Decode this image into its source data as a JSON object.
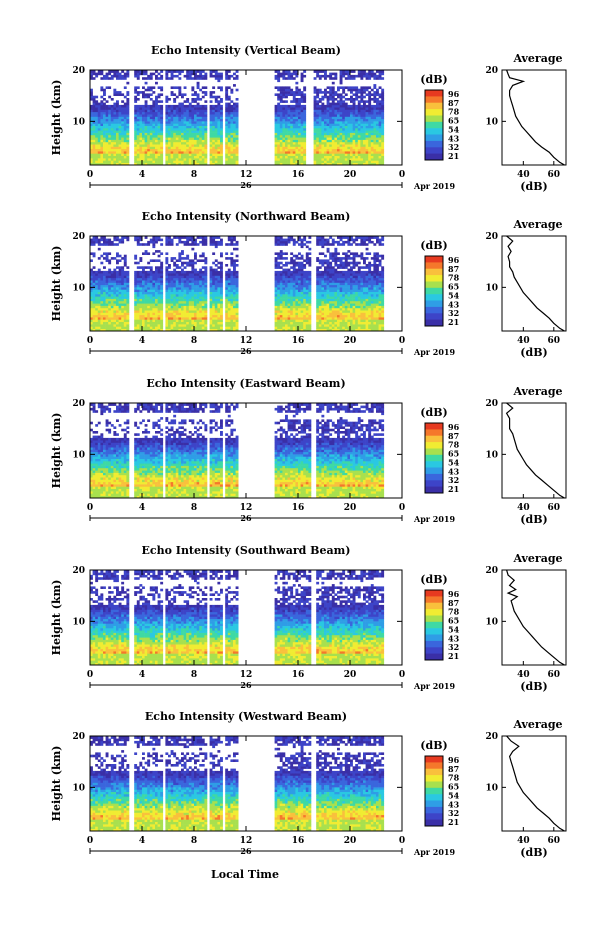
{
  "figure": {
    "xlabel": "Local Time",
    "date_day": "26",
    "date_month_year": "Apr 2019"
  },
  "colorbar": {
    "unit": "(dB)",
    "ticks": [
      "96",
      "87",
      "78",
      "65",
      "54",
      "43",
      "32",
      "21"
    ],
    "colors": [
      "#e73a20",
      "#f5772b",
      "#f9c03c",
      "#f1ec32",
      "#a8e04e",
      "#3ed9a4",
      "#2ac8e2",
      "#2f9de6",
      "#3a66dd",
      "#3d44c8",
      "#3a2fa7"
    ]
  },
  "chart_data": [
    {
      "type": "heatmap",
      "title": "Echo Intensity (Vertical Beam)",
      "ylabel": "Height (km)",
      "xlim": [
        0,
        24
      ],
      "ylim": [
        1.5,
        20
      ],
      "xticks": [
        "0",
        "4",
        "8",
        "12",
        "16",
        "20",
        "0"
      ],
      "yticks": [
        "10",
        "20"
      ],
      "data_gaps_hours": [
        [
          3.0,
          3.4
        ],
        [
          5.6,
          5.9
        ],
        [
          9.0,
          9.2
        ],
        [
          10.2,
          10.4
        ],
        [
          11.4,
          14.2
        ],
        [
          16.6,
          17.2
        ]
      ],
      "profile": {
        "title": "Average",
        "xlabel": "(dB)",
        "xticks": [
          "40",
          "60"
        ],
        "xlim": [
          26,
          68
        ],
        "ylim": [
          1.5,
          20
        ],
        "height_km": [
          1.5,
          2,
          3,
          4,
          5,
          6,
          7,
          8,
          9,
          10,
          11,
          12,
          13,
          14,
          15,
          16,
          17,
          17.8,
          18.5,
          19.2,
          20
        ],
        "intensity_db": [
          67,
          64,
          60,
          57,
          52,
          48,
          45,
          42,
          39,
          37,
          35,
          34,
          33,
          32,
          31,
          31,
          33,
          40,
          31,
          30,
          29
        ]
      }
    },
    {
      "type": "heatmap",
      "title": "Echo Intensity (Northward Beam)",
      "ylabel": "Height (km)",
      "xlim": [
        0,
        24
      ],
      "ylim": [
        1.5,
        20
      ],
      "xticks": [
        "0",
        "4",
        "8",
        "12",
        "16",
        "20",
        "0"
      ],
      "yticks": [
        "10",
        "20"
      ],
      "data_gaps_hours": [
        [
          3.0,
          3.4
        ],
        [
          5.6,
          5.9
        ],
        [
          9.0,
          9.2
        ],
        [
          10.2,
          10.4
        ],
        [
          11.4,
          14.2
        ],
        [
          17.0,
          17.4
        ]
      ],
      "profile": {
        "title": "Average",
        "xlabel": "(dB)",
        "xticks": [
          "40",
          "60"
        ],
        "xlim": [
          26,
          68
        ],
        "ylim": [
          1.5,
          20
        ],
        "height_km": [
          1.5,
          2,
          3,
          4,
          5,
          6,
          7,
          8,
          9,
          10,
          11,
          12,
          13,
          14,
          15,
          16,
          17,
          18,
          19,
          20
        ],
        "intensity_db": [
          67,
          64,
          60,
          57,
          53,
          49,
          46,
          43,
          40,
          38,
          36,
          34,
          33,
          31,
          31,
          30,
          32,
          30,
          33,
          29
        ]
      }
    },
    {
      "type": "heatmap",
      "title": "Echo Intensity (Eastward Beam)",
      "ylabel": "Height (km)",
      "xlim": [
        0,
        24
      ],
      "ylim": [
        1.5,
        20
      ],
      "xticks": [
        "0",
        "4",
        "8",
        "12",
        "16",
        "20",
        "0"
      ],
      "yticks": [
        "10",
        "20"
      ],
      "data_gaps_hours": [
        [
          3.0,
          3.4
        ],
        [
          5.6,
          5.9
        ],
        [
          9.0,
          9.2
        ],
        [
          10.2,
          10.4
        ],
        [
          11.4,
          14.2
        ],
        [
          17.0,
          17.4
        ]
      ],
      "profile": {
        "title": "Average",
        "xlabel": "(dB)",
        "xticks": [
          "40",
          "60"
        ],
        "xlim": [
          26,
          68
        ],
        "ylim": [
          1.5,
          20
        ],
        "height_km": [
          1.5,
          2,
          3,
          4,
          5,
          6,
          7,
          8,
          9,
          10,
          11,
          12,
          13,
          14,
          15,
          16,
          17,
          18,
          19,
          20
        ],
        "intensity_db": [
          67,
          64,
          60,
          56,
          52,
          48,
          45,
          42,
          40,
          38,
          36,
          35,
          34,
          33,
          31,
          31,
          31,
          29,
          33,
          29
        ]
      }
    },
    {
      "type": "heatmap",
      "title": "Echo Intensity (Southward Beam)",
      "ylabel": "Height (km)",
      "xlim": [
        0,
        24
      ],
      "ylim": [
        1.5,
        20
      ],
      "xticks": [
        "0",
        "4",
        "8",
        "12",
        "16",
        "20",
        "0"
      ],
      "yticks": [
        "10",
        "20"
      ],
      "data_gaps_hours": [
        [
          3.0,
          3.4
        ],
        [
          5.6,
          5.9
        ],
        [
          9.0,
          9.2
        ],
        [
          10.2,
          10.4
        ],
        [
          11.4,
          14.2
        ],
        [
          17.0,
          17.4
        ]
      ],
      "profile": {
        "title": "Average",
        "xlabel": "(dB)",
        "xticks": [
          "40",
          "60"
        ],
        "xlim": [
          26,
          68
        ],
        "ylim": [
          1.5,
          20
        ],
        "height_km": [
          1.5,
          2,
          3,
          4,
          5,
          6,
          7,
          8,
          9,
          10,
          11,
          12,
          13,
          14,
          14.8,
          15.5,
          16.2,
          17,
          18,
          19,
          20
        ],
        "intensity_db": [
          67,
          64,
          60,
          56,
          52,
          49,
          46,
          43,
          40,
          38,
          36,
          34,
          33,
          32,
          36,
          30,
          35,
          31,
          34,
          30,
          29
        ]
      }
    },
    {
      "type": "heatmap",
      "title": "Echo Intensity (Westward Beam)",
      "ylabel": "Height (km)",
      "xlim": [
        0,
        24
      ],
      "ylim": [
        1.5,
        20
      ],
      "xticks": [
        "0",
        "4",
        "8",
        "12",
        "16",
        "20",
        "0"
      ],
      "yticks": [
        "10",
        "20"
      ],
      "data_gaps_hours": [
        [
          3.0,
          3.4
        ],
        [
          5.6,
          5.9
        ],
        [
          9.0,
          9.2
        ],
        [
          10.2,
          10.4
        ],
        [
          11.4,
          14.2
        ],
        [
          17.0,
          17.4
        ]
      ],
      "profile": {
        "title": "Average",
        "xlabel": "(dB)",
        "xticks": [
          "40",
          "60"
        ],
        "xlim": [
          26,
          68
        ],
        "ylim": [
          1.5,
          20
        ],
        "height_km": [
          1.5,
          2,
          3,
          4,
          5,
          6,
          7,
          8,
          9,
          10,
          11,
          12,
          13,
          14,
          15,
          16,
          17,
          18,
          19,
          20
        ],
        "intensity_db": [
          67,
          64,
          60,
          57,
          53,
          49,
          46,
          43,
          40,
          38,
          36,
          35,
          34,
          33,
          32,
          31,
          33,
          37,
          32,
          29
        ]
      }
    }
  ]
}
